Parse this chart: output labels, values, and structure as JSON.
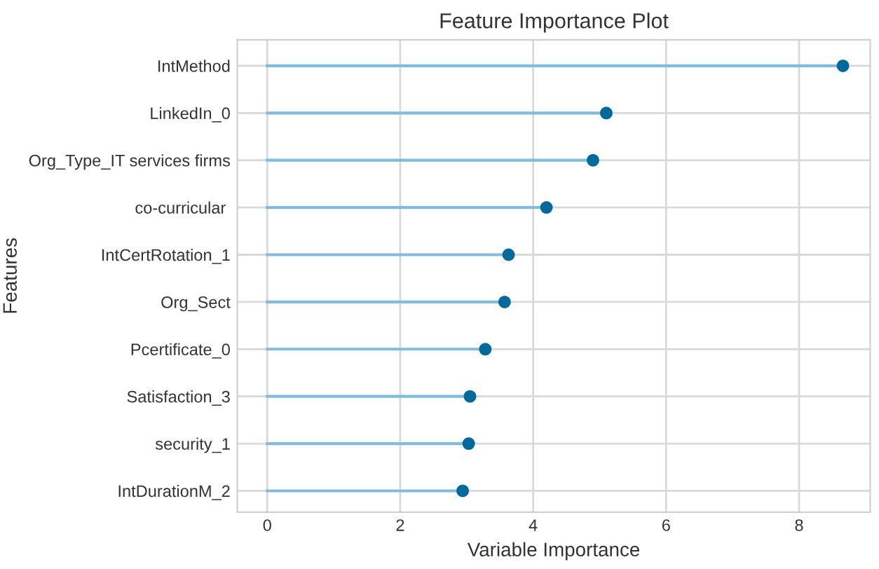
{
  "chart_data": {
    "type": "lollipop",
    "orientation": "horizontal",
    "title": "Feature Importance Plot",
    "xlabel": "Variable Importance",
    "ylabel": "Features",
    "categories": [
      "IntMethod",
      "LinkedIn_0",
      "Org_Type_IT services firms",
      "co-curricular ",
      "IntCertRotation_1",
      "Org_Sect",
      "Pcertificate_0",
      "Satisfaction_3",
      "security_1",
      "IntDurationM_2"
    ],
    "series": [
      {
        "color": "#006a9c",
        "values": [
          8.66,
          5.1,
          4.9,
          4.2,
          3.63,
          3.57,
          3.28,
          3.05,
          3.03,
          2.94
        ]
      }
    ],
    "xlim": [
      -0.45,
      9.07
    ],
    "xticks": [
      0,
      2,
      4,
      6,
      8
    ],
    "grid": true,
    "marker": "circle"
  }
}
